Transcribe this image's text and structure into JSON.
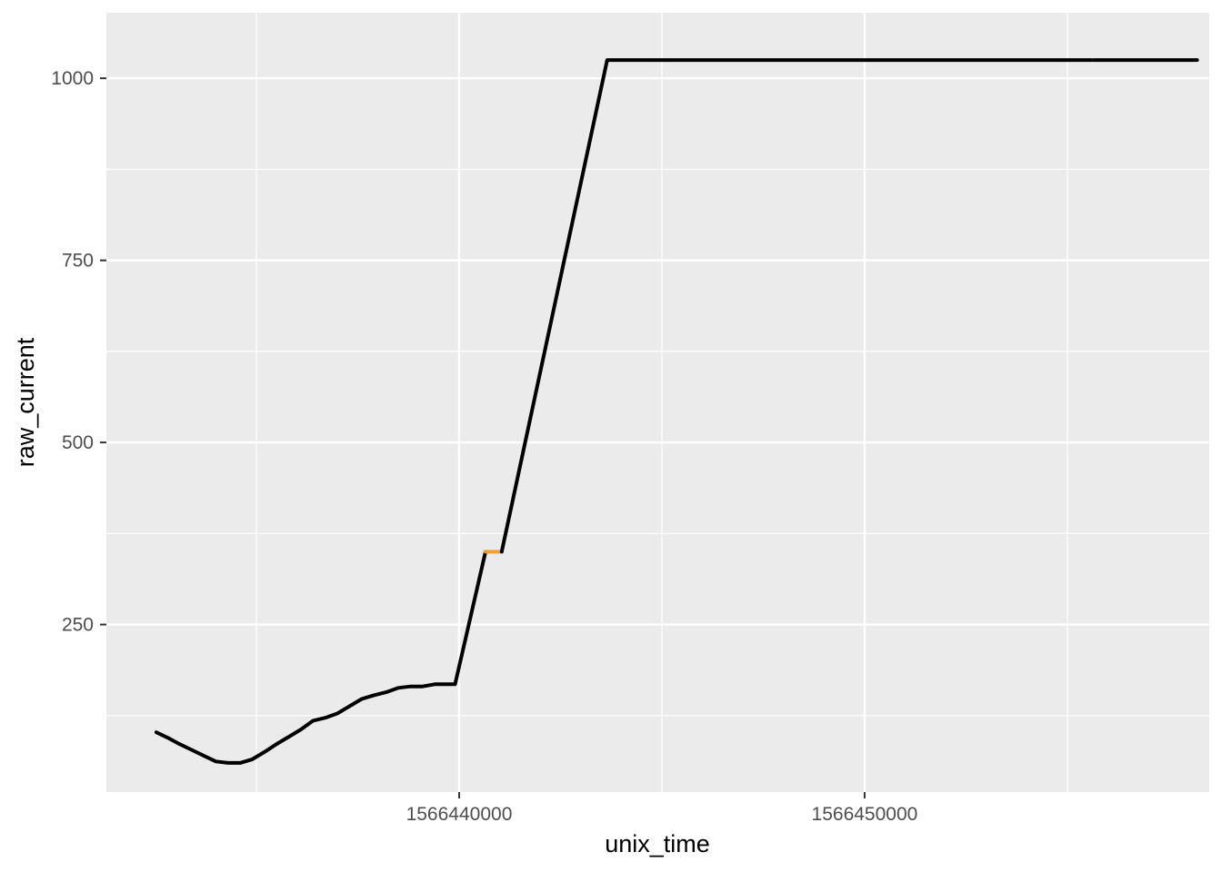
{
  "chart_data": {
    "type": "line",
    "title": "",
    "xlabel": "unix_time",
    "ylabel": "raw_current",
    "xlim": [
      1566431300,
      1566458500
    ],
    "ylim": [
      20,
      1090
    ],
    "x_ticks": [
      1566440000,
      1566450000
    ],
    "x_tick_labels": [
      "1566440000",
      "1566450000"
    ],
    "x_minor_ticks": [
      1566435000,
      1566445000,
      1566455000
    ],
    "y_ticks": [
      250,
      500,
      750,
      1000
    ],
    "y_tick_labels": [
      "250",
      "500",
      "750",
      "1000"
    ],
    "y_minor_ticks": [
      125,
      375,
      625,
      875
    ],
    "grid": true,
    "panel_background": "#ebebeb",
    "grid_color": "#ffffff",
    "legend": "none",
    "series": [
      {
        "color": "#000000",
        "x": [
          1566432530,
          1566432800,
          1566433100,
          1566433400,
          1566433700,
          1566434000,
          1566434300,
          1566434600,
          1566434900,
          1566435200,
          1566435500,
          1566435800,
          1566436100,
          1566436400,
          1566436700,
          1566437000,
          1566437300,
          1566437600,
          1566437900,
          1566438200,
          1566438500,
          1566438800,
          1566439100,
          1566439400,
          1566439700,
          1566439900,
          1566440650
        ],
        "y": [
          102,
          95,
          86,
          78,
          70,
          62,
          60,
          60,
          65,
          75,
          86,
          96,
          106,
          118,
          122,
          128,
          138,
          148,
          153,
          157,
          163,
          165,
          165,
          168,
          168,
          168,
          350
        ]
      },
      {
        "color": "#f0a030",
        "x": [
          1566440650,
          1566441050
        ],
        "y": [
          350,
          350
        ]
      },
      {
        "color": "#000000",
        "x": [
          1566441050,
          1566443650,
          1566455600
        ],
        "y": [
          350,
          1025,
          1025
        ]
      },
      {
        "color": "#000000",
        "x": [
          1566455650,
          1566458200
        ],
        "y": [
          1025,
          1025
        ]
      }
    ]
  }
}
